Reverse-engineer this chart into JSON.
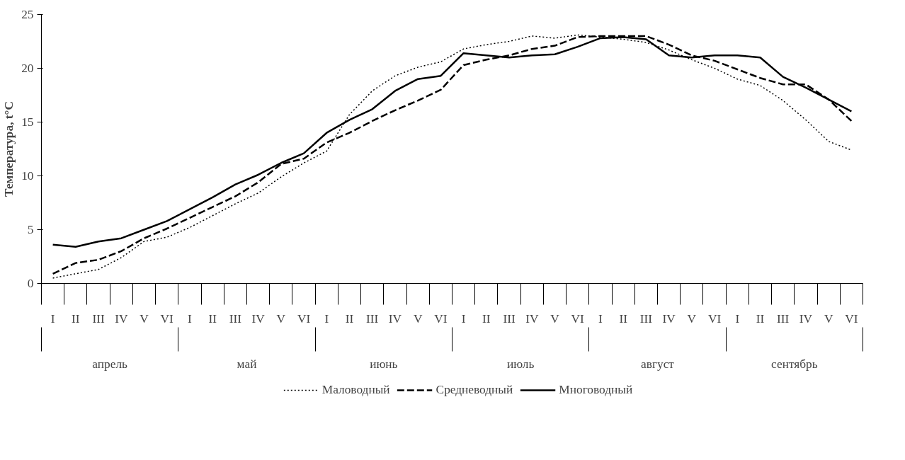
{
  "chart_data": {
    "type": "line",
    "ylabel": "Температура, t°С",
    "categories": [
      "I",
      "II",
      "III",
      "IV",
      "V",
      "VI",
      "I",
      "II",
      "III",
      "IV",
      "V",
      "VI",
      "I",
      "II",
      "III",
      "IV",
      "V",
      "VI",
      "I",
      "II",
      "III",
      "IV",
      "V",
      "VI",
      "I",
      "II",
      "III",
      "IV",
      "V",
      "VI",
      "I",
      "II",
      "III",
      "IV",
      "V",
      "VI"
    ],
    "annotations": [
      "апрель",
      "май",
      "июнь",
      "июль",
      "август",
      "сентябрь"
    ],
    "series": [
      {
        "name": "Маловодный",
        "color": "#000000",
        "line_style": "dotted",
        "values": [
          0.5,
          0.9,
          1.3,
          2.4,
          3.9,
          4.3,
          5.2,
          6.3,
          7.4,
          8.4,
          9.9,
          11.2,
          12.3,
          15.7,
          17.9,
          19.3,
          20.1,
          20.6,
          21.8,
          22.2,
          22.5,
          23.0,
          22.8,
          23.1,
          22.9,
          22.7,
          22.4,
          21.7,
          20.8,
          20.0,
          19.0,
          18.4,
          17.0,
          15.2,
          13.2,
          12.4
        ]
      },
      {
        "name": "Средневодный",
        "color": "#000000",
        "line_style": "dashed",
        "values": [
          0.9,
          1.9,
          2.2,
          3.0,
          4.2,
          5.1,
          6.1,
          7.1,
          8.1,
          9.4,
          11.1,
          11.6,
          13.1,
          14.0,
          15.1,
          16.1,
          17.0,
          18.0,
          20.3,
          20.8,
          21.2,
          21.8,
          22.1,
          22.9,
          23.0,
          23.0,
          23.0,
          22.2,
          21.2,
          20.7,
          19.9,
          19.1,
          18.5,
          18.5,
          17.1,
          15.1
        ]
      },
      {
        "name": "Многоводный",
        "color": "#000000",
        "line_style": "solid",
        "values": [
          3.6,
          3.4,
          3.9,
          4.2,
          5.0,
          5.8,
          6.9,
          8.0,
          9.2,
          10.1,
          11.2,
          12.1,
          14.0,
          15.2,
          16.2,
          17.9,
          19.0,
          19.3,
          21.4,
          21.2,
          21.0,
          21.2,
          21.3,
          22.0,
          22.8,
          22.9,
          22.7,
          21.2,
          21.0,
          21.2,
          21.2,
          21.0,
          19.2,
          18.2,
          17.1,
          16.0
        ]
      }
    ],
    "ylim": [
      0,
      25
    ],
    "yticks": [
      0,
      5,
      10,
      15,
      20,
      25
    ],
    "grid": false,
    "legend": "bottom",
    "marker": "none"
  }
}
